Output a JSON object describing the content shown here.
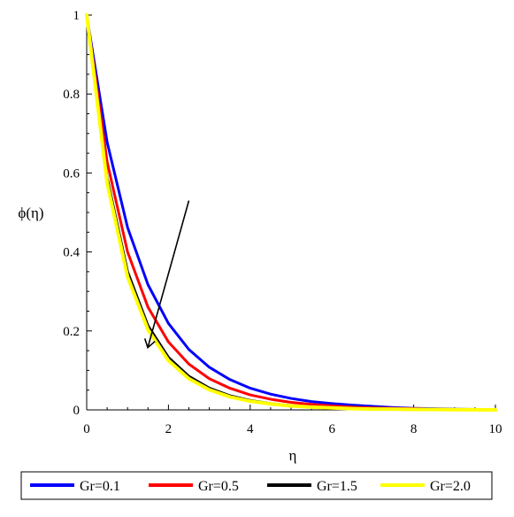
{
  "chart_data": {
    "type": "line",
    "title": "",
    "xlabel": "η",
    "ylabel": "ϕ(η)",
    "xlim": [
      0,
      10
    ],
    "ylim": [
      0,
      1
    ],
    "xticks": [
      0,
      2,
      4,
      6,
      8,
      10
    ],
    "yticks": [
      0,
      0.2,
      0.4,
      0.6,
      0.8,
      1
    ],
    "x": [
      0,
      0.5,
      1,
      1.5,
      2,
      2.5,
      3,
      3.5,
      4,
      4.5,
      5,
      5.5,
      6,
      6.5,
      7,
      7.5,
      8,
      8.5,
      9,
      9.5,
      10
    ],
    "series": [
      {
        "name": "Gr=0.1",
        "color": "#0000ff",
        "values": [
          1,
          0.678,
          0.462,
          0.317,
          0.219,
          0.153,
          0.108,
          0.077,
          0.055,
          0.04,
          0.029,
          0.021,
          0.016,
          0.012,
          0.009,
          0.006,
          0.004,
          0.003,
          0.002,
          0.001,
          0
        ]
      },
      {
        "name": "Gr=0.5",
        "color": "#ff0000",
        "values": [
          1,
          0.628,
          0.4,
          0.26,
          0.172,
          0.116,
          0.079,
          0.055,
          0.038,
          0.027,
          0.019,
          0.014,
          0.01,
          0.007,
          0.005,
          0.004,
          0.003,
          0.002,
          0.001,
          0.0005,
          0
        ]
      },
      {
        "name": "Gr=1.5",
        "color": "#000000",
        "values": [
          1,
          0.587,
          0.35,
          0.213,
          0.133,
          0.085,
          0.055,
          0.036,
          0.024,
          0.016,
          0.011,
          0.008,
          0.005,
          0.004,
          0.003,
          0.002,
          0.001,
          0.001,
          0.0005,
          0.0002,
          0
        ]
      },
      {
        "name": "Gr=2.0",
        "color": "#ffff00",
        "values": [
          1,
          0.575,
          0.337,
          0.203,
          0.125,
          0.079,
          0.051,
          0.033,
          0.022,
          0.015,
          0.01,
          0.007,
          0.005,
          0.003,
          0.002,
          0.002,
          0.001,
          0.001,
          0.0005,
          0.0002,
          0
        ]
      }
    ],
    "annotations": [
      {
        "type": "arrow",
        "from": [
          2.5,
          0.53
        ],
        "to": [
          1.5,
          0.16
        ]
      }
    ],
    "legend_position": "bottom",
    "grid": false
  }
}
